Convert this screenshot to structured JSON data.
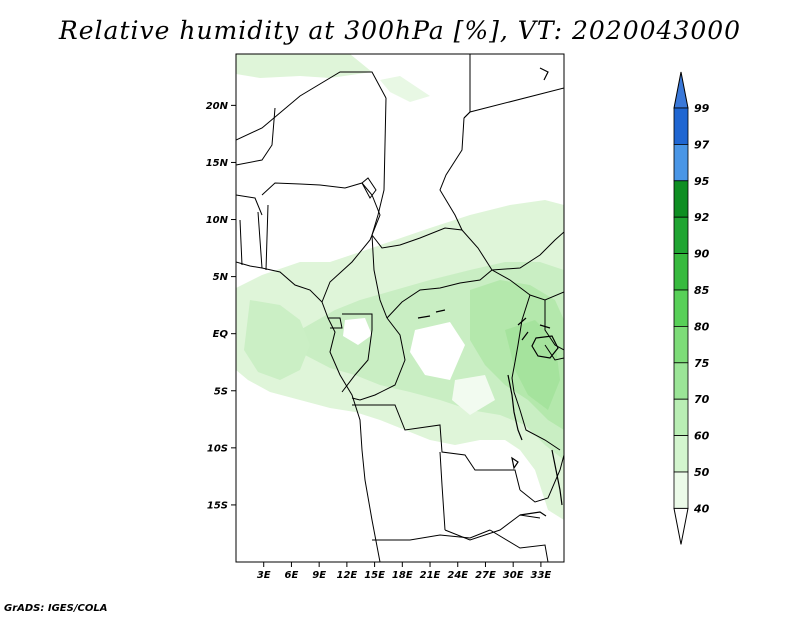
{
  "title": "Relative humidity at 300hPa [%], VT: 2020043000",
  "credit": "GrADS: IGES/COLA",
  "map": {
    "lat_labels": [
      "20N",
      "15N",
      "10N",
      "5N",
      "EQ",
      "5S",
      "10S",
      "15S"
    ],
    "lon_labels": [
      "3E",
      "6E",
      "9E",
      "12E",
      "15E",
      "18E",
      "21E",
      "24E",
      "27E",
      "30E",
      "33E"
    ],
    "lon_range": [
      0,
      35.5
    ],
    "lat_range": [
      -20,
      24.5
    ]
  },
  "colorbar": {
    "levels": [
      "99",
      "97",
      "95",
      "92",
      "90",
      "85",
      "80",
      "75",
      "70",
      "60",
      "50",
      "40"
    ],
    "colors": [
      "#3a78d8",
      "#1f66d2",
      "#4a96e6",
      "#0e8e22",
      "#20a532",
      "#37ba3e",
      "#58d058",
      "#7ddc78",
      "#9be597",
      "#b9eeb4",
      "#d3f5ce",
      "#ecfbe9"
    ]
  },
  "colors": {
    "humid_light": "#dff5d9",
    "humid_mid": "#c2ecbb",
    "humid_high": "#a7e49f",
    "border": "#000000"
  }
}
